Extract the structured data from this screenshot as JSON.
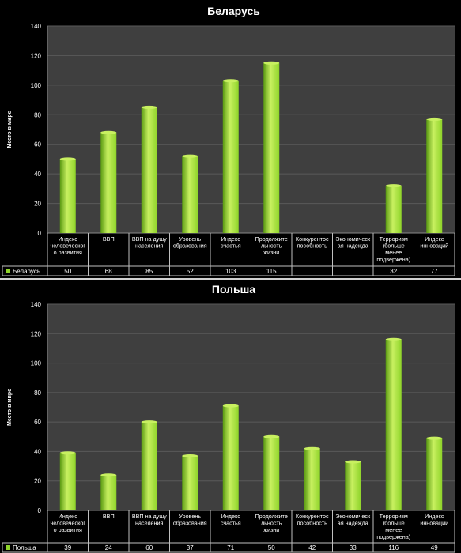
{
  "chart_data": [
    {
      "type": "bar",
      "title": "Беларусь",
      "ylabel": "Место в мире",
      "ylim": [
        0,
        140
      ],
      "yticks": [
        0,
        20,
        40,
        60,
        80,
        100,
        120,
        140
      ],
      "grid": true,
      "legend": "data-table-left",
      "categories": [
        [
          "Индекс",
          "человеческог",
          "о развития"
        ],
        [
          "ВВП"
        ],
        [
          "ВВП на душу",
          "населения"
        ],
        [
          "Уровень",
          "образования"
        ],
        [
          "Индекс",
          "счастья"
        ],
        [
          "Продолжите",
          "льность",
          "жизни"
        ],
        [
          "Конкурентос",
          "пособность"
        ],
        [
          "Экономическ",
          "ая надежда"
        ],
        [
          "Терроризм",
          "(больше",
          "менее",
          "подвержена)"
        ],
        [
          "Индекс",
          "инноваций"
        ]
      ],
      "series": [
        {
          "name": "Беларусь",
          "values": [
            50,
            68,
            85,
            52,
            103,
            115,
            null,
            null,
            32,
            77
          ]
        }
      ],
      "colors": {
        "bar": "#8fd42a",
        "bar_light": "#c8f060",
        "bar_dark": "#5a9a12"
      }
    },
    {
      "type": "bar",
      "title": "Польша",
      "ylabel": "Место в мире",
      "ylim": [
        0,
        140
      ],
      "yticks": [
        0,
        20,
        40,
        60,
        80,
        100,
        120,
        140
      ],
      "grid": true,
      "legend": "data-table-left",
      "categories": [
        [
          "Индекс",
          "человеческог",
          "о развития"
        ],
        [
          "ВВП"
        ],
        [
          "ВВП на душу",
          "населения"
        ],
        [
          "Уровень",
          "образования"
        ],
        [
          "Индекс",
          "счастья"
        ],
        [
          "Продолжите",
          "льность",
          "жизни"
        ],
        [
          "Конкурентос",
          "пособность"
        ],
        [
          "Экономическ",
          "ая надежда"
        ],
        [
          "Терроризм",
          "(больше",
          "менее",
          "подвержена)"
        ],
        [
          "Индекс",
          "инноваций"
        ]
      ],
      "series": [
        {
          "name": "Польша",
          "values": [
            39,
            24,
            60,
            37,
            71,
            50,
            42,
            33,
            116,
            49
          ]
        }
      ],
      "colors": {
        "bar": "#8fd42a",
        "bar_light": "#c8f060",
        "bar_dark": "#5a9a12"
      }
    }
  ]
}
